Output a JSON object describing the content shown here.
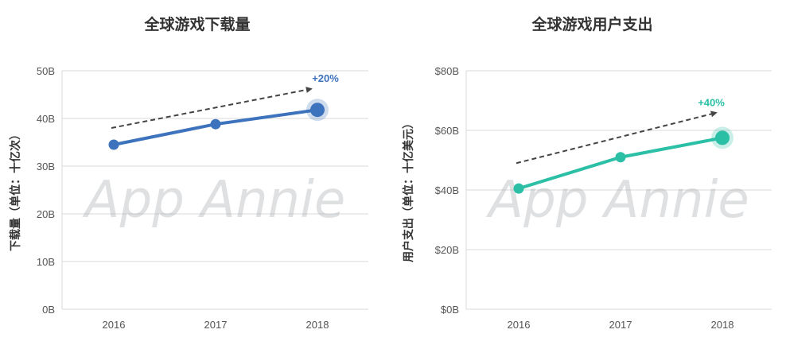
{
  "chart_data": [
    {
      "type": "line",
      "title": "全球游戏下载量",
      "ylabel": "下载量（单位：十亿次）",
      "xlabel": "",
      "categories": [
        "2016",
        "2017",
        "2018"
      ],
      "values": [
        34.5,
        38.8,
        41.8
      ],
      "ylim": [
        0,
        50
      ],
      "yticks": [
        0,
        10,
        20,
        30,
        40,
        50
      ],
      "ytick_labels": [
        "0B",
        "10B",
        "20B",
        "30B",
        "40B",
        "50B"
      ],
      "annotation": "+20%",
      "color": "#3d72bd",
      "trend_arrow": {
        "start": 38.0,
        "end": 46.0
      },
      "grid": true,
      "watermark": "App Annie"
    },
    {
      "type": "line",
      "title": "全球游戏用户支出",
      "ylabel": "用户支出（单位：十亿美元）",
      "xlabel": "",
      "categories": [
        "2016",
        "2017",
        "2018"
      ],
      "values": [
        40.5,
        51,
        57.5
      ],
      "ylim": [
        0,
        80
      ],
      "yticks": [
        0,
        20,
        40,
        60,
        80
      ],
      "ytick_labels": [
        "$0B",
        "$20B",
        "$40B",
        "$60B",
        "$80B"
      ],
      "annotation": "+40%",
      "color": "#2bbfa6",
      "trend_arrow": {
        "start": 49.0,
        "end": 65.5
      },
      "grid": true,
      "watermark": "App Annie"
    }
  ]
}
